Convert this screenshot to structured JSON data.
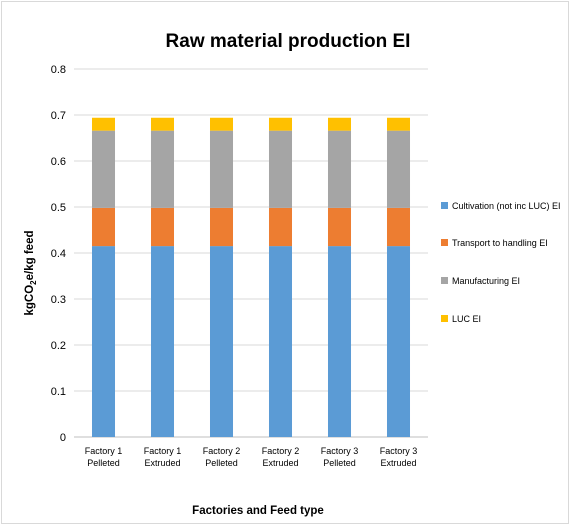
{
  "chart_data": {
    "type": "bar",
    "stacked": true,
    "title": "Raw material production EI",
    "xlabel": "Factories and Feed type",
    "ylabel": "kgCO2e/kg feed",
    "ylabel_parts": {
      "before": "kgCO",
      "sub": "2",
      "after": "e/kg feed"
    },
    "ylim": [
      0,
      0.8
    ],
    "yticks": [
      0,
      0.1,
      0.2,
      0.3,
      0.4,
      0.5,
      0.6,
      0.7,
      0.8
    ],
    "yticks_labels": [
      "0",
      "0.1",
      "0.2",
      "0.3",
      "0.4",
      "0.5",
      "0.6",
      "0.7",
      "0.8"
    ],
    "grid": true,
    "legend_position": "right",
    "categories": [
      [
        "Factory 1",
        "Pelleted"
      ],
      [
        "Factory 1",
        "Extruded"
      ],
      [
        "Factory 2",
        "Pelleted"
      ],
      [
        "Factory 2",
        "Extruded"
      ],
      [
        "Factory 3",
        "Pelleted"
      ],
      [
        "Factory 3",
        "Extruded"
      ]
    ],
    "series": [
      {
        "name": "Cultivation (not inc LUC) EI",
        "color": "#5b9bd5",
        "values": [
          0.415,
          0.415,
          0.415,
          0.415,
          0.415,
          0.415
        ]
      },
      {
        "name": "Transport to handling EI",
        "color": "#ed7d31",
        "values": [
          0.083,
          0.083,
          0.083,
          0.083,
          0.083,
          0.083
        ]
      },
      {
        "name": "Manufacturing EI",
        "color": "#a5a5a5",
        "values": [
          0.168,
          0.168,
          0.168,
          0.168,
          0.168,
          0.168
        ]
      },
      {
        "name": "LUC EI",
        "color": "#ffc000",
        "values": [
          0.028,
          0.028,
          0.028,
          0.028,
          0.028,
          0.028
        ]
      }
    ]
  }
}
